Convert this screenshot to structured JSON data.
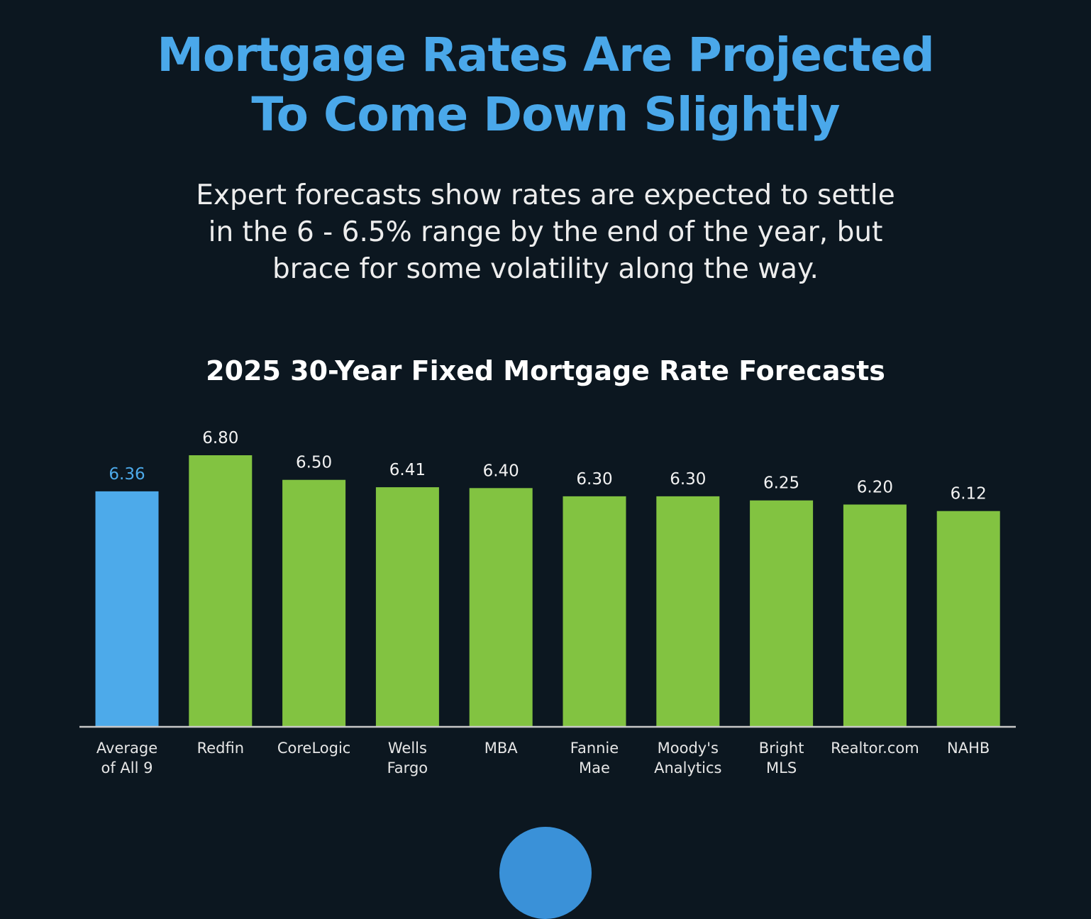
{
  "headline": {
    "line1": "Mortgage Rates Are Projected",
    "line2": "To Come Down Slightly"
  },
  "subtitle": {
    "line1": "Expert forecasts show rates are expected to settle",
    "line2": "in the 6 - 6.5% range by the end of the year, but",
    "line3": "brace for some volatility along the way."
  },
  "colors": {
    "background": "#0c1720",
    "headline": "#4aa8ea",
    "average_bar": "#4daaea",
    "source_bar": "#82c341",
    "axis": "#c8c8c8"
  },
  "chart_data": {
    "type": "bar",
    "title": "2025 30-Year Fixed Mortgage Rate Forecasts",
    "xlabel": "",
    "ylabel": "",
    "grid": false,
    "categories": [
      [
        "Average",
        "of All 9"
      ],
      [
        "Redfin"
      ],
      [
        "CoreLogic"
      ],
      [
        "Wells",
        "Fargo"
      ],
      [
        "MBA"
      ],
      [
        "Fannie",
        "Mae"
      ],
      [
        "Moody's",
        "Analytics"
      ],
      [
        "Bright",
        "MLS"
      ],
      [
        "Realtor.com"
      ],
      [
        "NAHB"
      ]
    ],
    "values": [
      6.36,
      6.8,
      6.5,
      6.41,
      6.4,
      6.3,
      6.3,
      6.25,
      6.2,
      6.12
    ],
    "value_labels": [
      "6.36",
      "6.80",
      "6.50",
      "6.41",
      "6.40",
      "6.30",
      "6.30",
      "6.25",
      "6.20",
      "6.12"
    ],
    "highlight_index": 0,
    "ylim": [
      3.5,
      6.8
    ]
  }
}
